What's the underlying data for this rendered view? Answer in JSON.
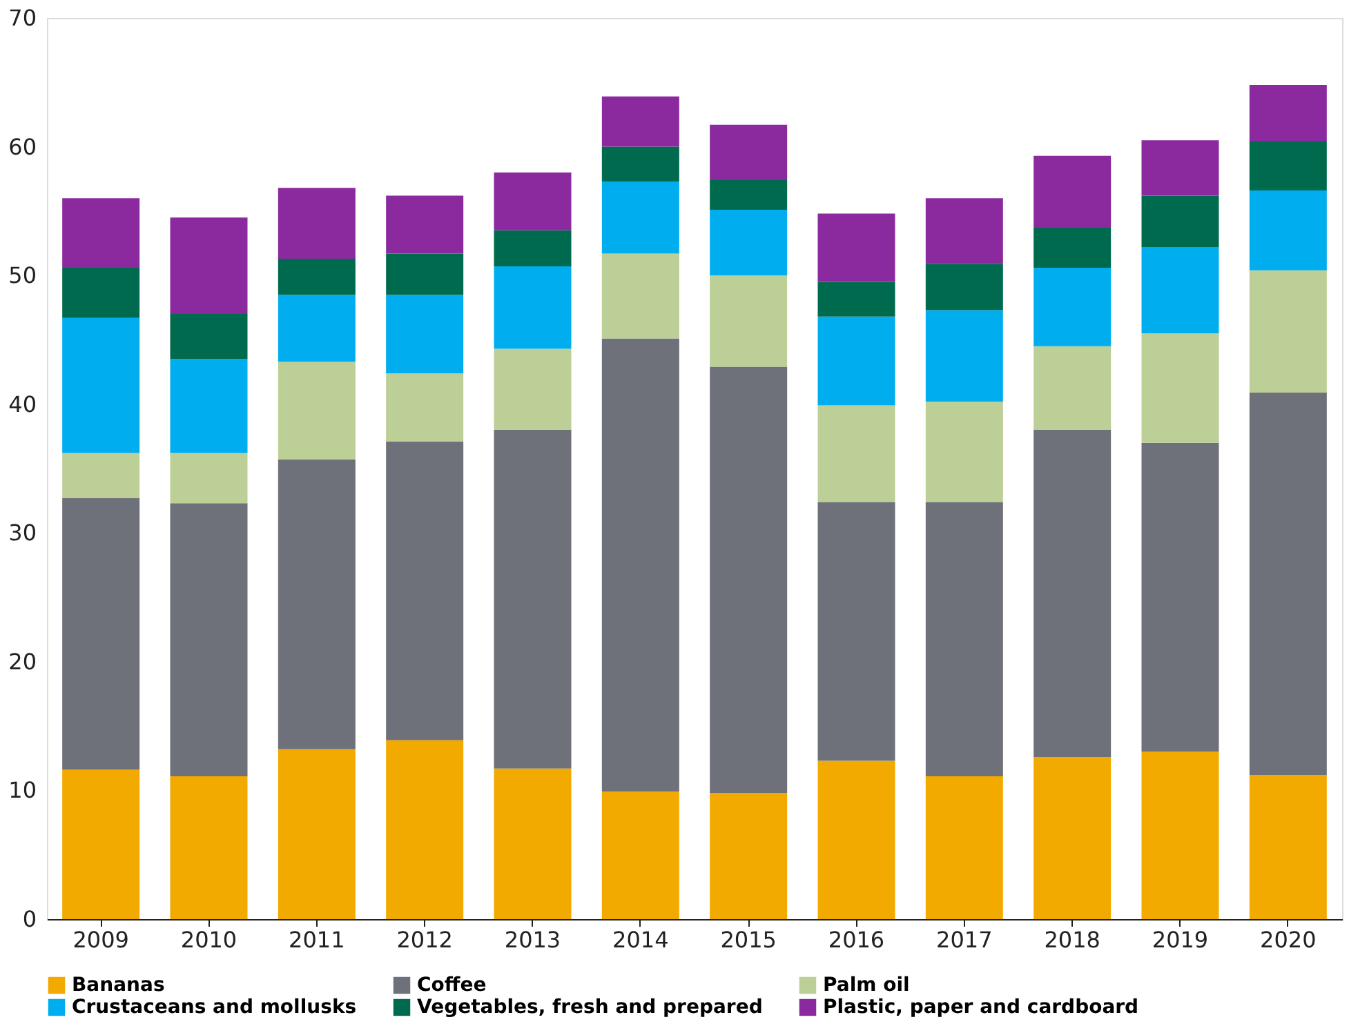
{
  "chart_data": {
    "type": "bar",
    "stacked": true,
    "categories": [
      "2009",
      "2010",
      "2011",
      "2012",
      "2013",
      "2014",
      "2015",
      "2016",
      "2017",
      "2018",
      "2019",
      "2020"
    ],
    "series": [
      {
        "name": "Bananas",
        "color": "#f2a900",
        "values": [
          11.6,
          11.1,
          13.2,
          13.9,
          11.7,
          9.9,
          9.8,
          12.3,
          11.1,
          12.6,
          13.0,
          11.2
        ]
      },
      {
        "name": "Coffee",
        "color": "#6e7179",
        "values": [
          21.1,
          21.2,
          22.5,
          23.2,
          26.3,
          35.2,
          33.1,
          20.1,
          21.3,
          25.4,
          24.0,
          29.7
        ]
      },
      {
        "name": "Palm oil",
        "color": "#bccf96",
        "values": [
          3.5,
          3.9,
          7.6,
          5.3,
          6.3,
          6.6,
          7.1,
          7.5,
          7.8,
          6.5,
          8.5,
          9.5
        ]
      },
      {
        "name": "Crustaceans and mollusks",
        "color": "#00aeef",
        "values": [
          10.5,
          7.3,
          5.2,
          6.1,
          6.4,
          5.6,
          5.1,
          6.9,
          7.1,
          6.1,
          6.7,
          6.2
        ]
      },
      {
        "name": "Vegetables, fresh and prepared",
        "color": "#006a4e",
        "values": [
          3.9,
          3.5,
          2.8,
          3.2,
          2.8,
          2.7,
          2.3,
          2.7,
          3.6,
          3.1,
          4.0,
          3.8
        ]
      },
      {
        "name": "Plastic, paper and cardboard",
        "color": "#8b2a9e",
        "values": [
          5.4,
          7.5,
          5.5,
          4.5,
          4.5,
          3.9,
          4.3,
          5.3,
          5.1,
          5.6,
          4.3,
          4.4
        ]
      }
    ],
    "ylim": [
      0,
      70
    ],
    "yticks": [
      0,
      10,
      20,
      30,
      40,
      50,
      60,
      70
    ],
    "grid": false,
    "legend": "bottom"
  }
}
